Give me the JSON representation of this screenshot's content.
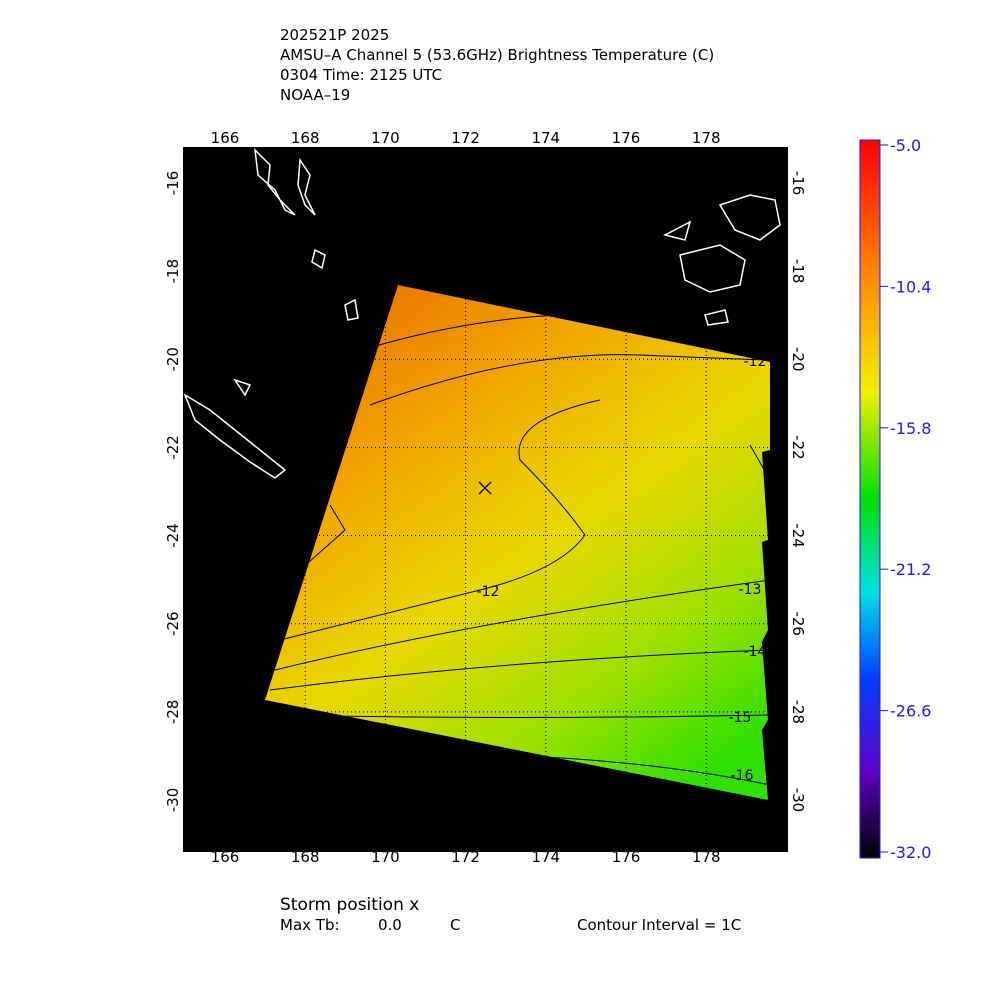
{
  "header": {
    "lines": [
      "202521P 2025",
      "AMSU–A Channel 5 (53.6GHz) Brightness Temperature (C)",
      "0304 Time: 2125 UTC",
      "NOAA–19"
    ]
  },
  "map": {
    "lon_ticks": [
      166,
      168,
      170,
      172,
      174,
      176,
      178
    ],
    "lat_ticks": [
      -16,
      -18,
      -20,
      -22,
      -24,
      -26,
      -28,
      -30
    ],
    "contour_labels": [
      "-12",
      "-12",
      "-13",
      "-14",
      "-15",
      "-16"
    ]
  },
  "colorbar": {
    "labels": [
      "-5.0",
      "-10.4",
      "-15.8",
      "-21.2",
      "-26.6",
      "-32.0"
    ]
  },
  "footer": {
    "storm": "Storm position x",
    "max_label": "Max Tb:",
    "max_value": "0.0",
    "max_unit": "C",
    "interval": "Contour Interval = 1C"
  }
}
